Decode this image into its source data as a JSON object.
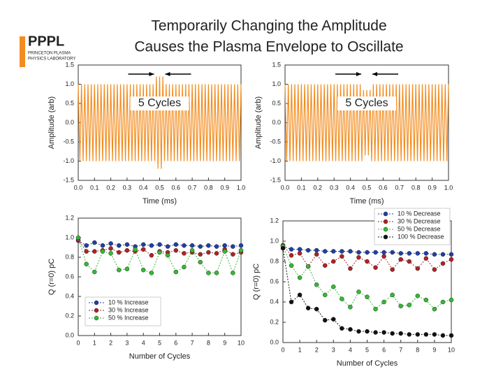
{
  "title": [
    "Temporarily Changing the Amplitude",
    "Causes the Plasma Envelope to Oscillate"
  ],
  "logo": {
    "name": "PPPL",
    "line1": "PRINCETON PLASMA",
    "line2": "PHYSICS LABORATORY"
  },
  "chart_data": [
    {
      "type": "line",
      "x_label": "Time (ms)",
      "y_label": "Amplitude (arb)",
      "annotation": "5 Cycles",
      "xlim": [
        0,
        1
      ],
      "ylim": [
        -1.5,
        1.5
      ],
      "xticks": [
        {
          "value": 0,
          "label": "0.0"
        },
        0.1,
        0.2,
        0.3,
        0.4,
        0.5,
        0.6,
        0.7,
        0.8,
        0.9,
        {
          "value": 1,
          "label": "1.0"
        }
      ],
      "yticks": [
        1.5,
        {
          "value": 1,
          "label": "1.0"
        },
        0.5,
        {
          "value": 0,
          "label": "0.0"
        },
        -0.5,
        {
          "value": -1,
          "label": "-1.0"
        },
        -1.5
      ],
      "x": [
        0,
        0.01,
        0.02,
        0.03,
        0.04,
        0.05,
        0.06,
        0.07,
        0.08,
        0.09,
        0.1,
        0.11,
        0.12,
        0.13,
        0.14,
        0.15,
        0.16,
        0.17,
        0.18,
        0.19,
        0.2,
        0.21,
        0.22,
        0.23,
        0.24,
        0.25,
        0.26,
        0.27,
        0.28,
        0.29,
        0.3,
        0.31,
        0.32,
        0.33,
        0.34,
        0.35,
        0.36,
        0.37,
        0.38,
        0.39,
        0.4,
        0.41,
        0.42,
        0.43,
        0.44,
        0.45,
        0.46,
        0.47,
        0.48,
        0.49,
        0.5,
        0.51,
        0.52,
        0.53,
        0.54,
        0.55,
        0.56,
        0.57,
        0.58,
        0.59,
        0.6,
        0.61,
        0.62,
        0.63,
        0.64,
        0.65,
        0.66,
        0.67,
        0.68,
        0.69,
        0.7,
        0.71,
        0.72,
        0.73,
        0.74,
        0.75,
        0.76,
        0.77,
        0.78,
        0.79,
        0.8,
        0.81,
        0.82,
        0.83,
        0.84,
        0.85,
        0.86,
        0.87,
        0.88,
        0.89,
        0.9,
        0.91,
        0.92,
        0.93,
        0.94,
        0.95,
        0.96,
        0.97,
        0.98,
        0.99,
        1
      ],
      "series": [
        {
          "color": "#f28c1e",
          "values": [
            1,
            -1,
            1,
            -1,
            1,
            -1,
            1,
            -1,
            1,
            -1,
            1,
            -1,
            1,
            -1,
            1,
            -1,
            1,
            -1,
            1,
            -1,
            1,
            -1,
            1,
            -1,
            1,
            -1,
            1,
            -1,
            1,
            -1,
            1,
            -1,
            1,
            -1,
            1,
            -1,
            1,
            -1,
            1,
            -1,
            1,
            -1,
            1,
            -1,
            1,
            -1,
            1,
            -1,
            1.2,
            -1.2,
            1.2,
            -1.2,
            1.2,
            -1,
            1,
            -1,
            1,
            -1,
            1,
            -1,
            1,
            -1,
            1,
            -1,
            1,
            -1,
            1,
            -1,
            1,
            -1,
            1,
            -1,
            1,
            -1,
            1,
            -1,
            1,
            -1,
            1,
            -1,
            1,
            -1,
            1,
            -1,
            1,
            -1,
            1,
            -1,
            1,
            -1,
            1,
            -1,
            1,
            -1,
            1,
            -1,
            1,
            -1,
            1,
            -1,
            1
          ]
        }
      ]
    },
    {
      "type": "line",
      "x_label": "Time (ms)",
      "y_label": "Amplitude (arb)",
      "annotation": "5 Cycles",
      "xlim": [
        0,
        1
      ],
      "ylim": [
        -1.5,
        1.5
      ],
      "xticks": [
        {
          "value": 0,
          "label": "0.0"
        },
        0.1,
        0.2,
        0.3,
        0.4,
        0.5,
        0.6,
        0.7,
        0.8,
        0.9,
        {
          "value": 1,
          "label": "1.0"
        }
      ],
      "yticks": [
        1.5,
        {
          "value": 1,
          "label": "1.0"
        },
        0.5,
        {
          "value": 0,
          "label": "0.0"
        },
        -0.5,
        {
          "value": -1,
          "label": "-1.0"
        },
        -1.5
      ],
      "x": [
        0,
        0.01,
        0.02,
        0.03,
        0.04,
        0.05,
        0.06,
        0.07,
        0.08,
        0.09,
        0.1,
        0.11,
        0.12,
        0.13,
        0.14,
        0.15,
        0.16,
        0.17,
        0.18,
        0.19,
        0.2,
        0.21,
        0.22,
        0.23,
        0.24,
        0.25,
        0.26,
        0.27,
        0.28,
        0.29,
        0.3,
        0.31,
        0.32,
        0.33,
        0.34,
        0.35,
        0.36,
        0.37,
        0.38,
        0.39,
        0.4,
        0.41,
        0.42,
        0.43,
        0.44,
        0.45,
        0.46,
        0.47,
        0.48,
        0.49,
        0.5,
        0.51,
        0.52,
        0.53,
        0.54,
        0.55,
        0.56,
        0.57,
        0.58,
        0.59,
        0.6,
        0.61,
        0.62,
        0.63,
        0.64,
        0.65,
        0.66,
        0.67,
        0.68,
        0.69,
        0.7,
        0.71,
        0.72,
        0.73,
        0.74,
        0.75,
        0.76,
        0.77,
        0.78,
        0.79,
        0.8,
        0.81,
        0.82,
        0.83,
        0.84,
        0.85,
        0.86,
        0.87,
        0.88,
        0.89,
        0.9,
        0.91,
        0.92,
        0.93,
        0.94,
        0.95,
        0.96,
        0.97,
        0.98,
        0.99,
        1
      ],
      "series": [
        {
          "color": "#f28c1e",
          "values": [
            1,
            -1,
            1,
            -1,
            1,
            -1,
            1,
            -1,
            1,
            -1,
            1,
            -1,
            1,
            -1,
            1,
            -1,
            1,
            -1,
            1,
            -1,
            1,
            -1,
            1,
            -1,
            1,
            -1,
            1,
            -1,
            1,
            -1,
            1,
            -1,
            1,
            -1,
            1,
            -1,
            1,
            -1,
            1,
            -1,
            1,
            -1,
            1,
            -1,
            1,
            -1,
            1,
            -1,
            0.85,
            -0.85,
            0.85,
            -0.85,
            0.85,
            -1,
            1,
            -1,
            1,
            -1,
            1,
            -1,
            1,
            -1,
            1,
            -1,
            1,
            -1,
            1,
            -1,
            1,
            -1,
            1,
            -1,
            1,
            -1,
            1,
            -1,
            1,
            -1,
            1,
            -1,
            1,
            -1,
            1,
            -1,
            1,
            -1,
            1,
            -1,
            1,
            -1,
            1,
            -1,
            1,
            -1,
            1,
            -1,
            1,
            -1,
            1,
            -1,
            1
          ]
        }
      ]
    },
    {
      "type": "line",
      "markers": true,
      "legend": "lower left",
      "x_label": "Number of Cycles",
      "y_label": "Q (r=0) pC",
      "xlim": [
        0,
        10
      ],
      "ylim": [
        0,
        1.2
      ],
      "xticks": [
        0,
        1,
        2,
        3,
        4,
        5,
        6,
        7,
        8,
        9,
        10
      ],
      "yticks": [
        {
          "value": 0,
          "label": "0.0"
        },
        0.2,
        0.4,
        0.6,
        0.8,
        {
          "value": 1,
          "label": "1.0"
        },
        1.2
      ],
      "x": [
        0,
        0.5,
        1,
        1.5,
        2,
        2.5,
        3,
        3.5,
        4,
        4.5,
        5,
        5.5,
        6,
        6.5,
        7,
        7.5,
        8,
        8.5,
        9,
        9.5,
        10
      ],
      "series": [
        {
          "name": "10 % Increase",
          "color": "#1f3fa8",
          "values": [
            0.97,
            0.92,
            0.95,
            0.92,
            0.94,
            0.92,
            0.93,
            0.91,
            0.93,
            0.92,
            0.93,
            0.91,
            0.93,
            0.92,
            0.92,
            0.91,
            0.92,
            0.91,
            0.92,
            0.91,
            0.92
          ]
        },
        {
          "name": "30 % Increase",
          "color": "#b22222",
          "values": [
            0.98,
            0.86,
            0.86,
            0.87,
            0.89,
            0.85,
            0.87,
            0.86,
            0.88,
            0.82,
            0.86,
            0.85,
            0.87,
            0.84,
            0.85,
            0.83,
            0.85,
            0.84,
            0.88,
            0.83,
            0.85
          ]
        },
        {
          "name": "50 % Increase",
          "color": "#33bb33",
          "values": [
            1.0,
            0.73,
            0.65,
            0.86,
            0.84,
            0.67,
            0.68,
            0.88,
            0.67,
            0.64,
            0.85,
            0.82,
            0.65,
            0.7,
            0.87,
            0.75,
            0.64,
            0.64,
            0.86,
            0.64,
            0.87
          ]
        }
      ]
    },
    {
      "type": "line",
      "markers": true,
      "legend": "upper right",
      "x_label": "Number of Cycles",
      "y_label": "Q (r=0) pC",
      "xlim": [
        0,
        10
      ],
      "ylim": [
        0,
        1.2
      ],
      "xticks": [
        0,
        1,
        2,
        3,
        4,
        5,
        6,
        7,
        8,
        9,
        10
      ],
      "yticks": [
        {
          "value": 0,
          "label": "0.0"
        },
        0.2,
        0.4,
        0.6,
        0.8,
        {
          "value": 1,
          "label": "1.0"
        },
        1.2
      ],
      "x": [
        0,
        0.5,
        1,
        1.5,
        2,
        2.5,
        3,
        3.5,
        4,
        4.5,
        5,
        5.5,
        6,
        6.5,
        7,
        7.5,
        8,
        8.5,
        9,
        9.5,
        10
      ],
      "series": [
        {
          "name": "10 % Decrease",
          "color": "#1f3fa8",
          "values": [
            0.95,
            0.92,
            0.92,
            0.91,
            0.91,
            0.9,
            0.9,
            0.9,
            0.9,
            0.89,
            0.89,
            0.89,
            0.89,
            0.89,
            0.88,
            0.88,
            0.88,
            0.88,
            0.87,
            0.87,
            0.87
          ]
        },
        {
          "name": "30 % Decrease",
          "color": "#b22222",
          "values": [
            0.96,
            0.86,
            0.88,
            0.75,
            0.87,
            0.76,
            0.8,
            0.85,
            0.73,
            0.84,
            0.8,
            0.74,
            0.85,
            0.72,
            0.82,
            0.8,
            0.73,
            0.83,
            0.72,
            0.78,
            0.82
          ]
        },
        {
          "name": "50 % Decrease",
          "color": "#33bb33",
          "values": [
            0.95,
            0.76,
            0.64,
            0.75,
            0.57,
            0.47,
            0.55,
            0.43,
            0.35,
            0.5,
            0.45,
            0.33,
            0.4,
            0.47,
            0.36,
            0.37,
            0.46,
            0.42,
            0.33,
            0.4,
            0.42
          ]
        },
        {
          "name": "100 % Decrease",
          "color": "#111111",
          "values": [
            0.93,
            0.4,
            0.47,
            0.34,
            0.33,
            0.22,
            0.23,
            0.14,
            0.13,
            0.11,
            0.11,
            0.1,
            0.1,
            0.09,
            0.09,
            0.08,
            0.08,
            0.08,
            0.08,
            0.07,
            0.07
          ]
        }
      ]
    }
  ]
}
